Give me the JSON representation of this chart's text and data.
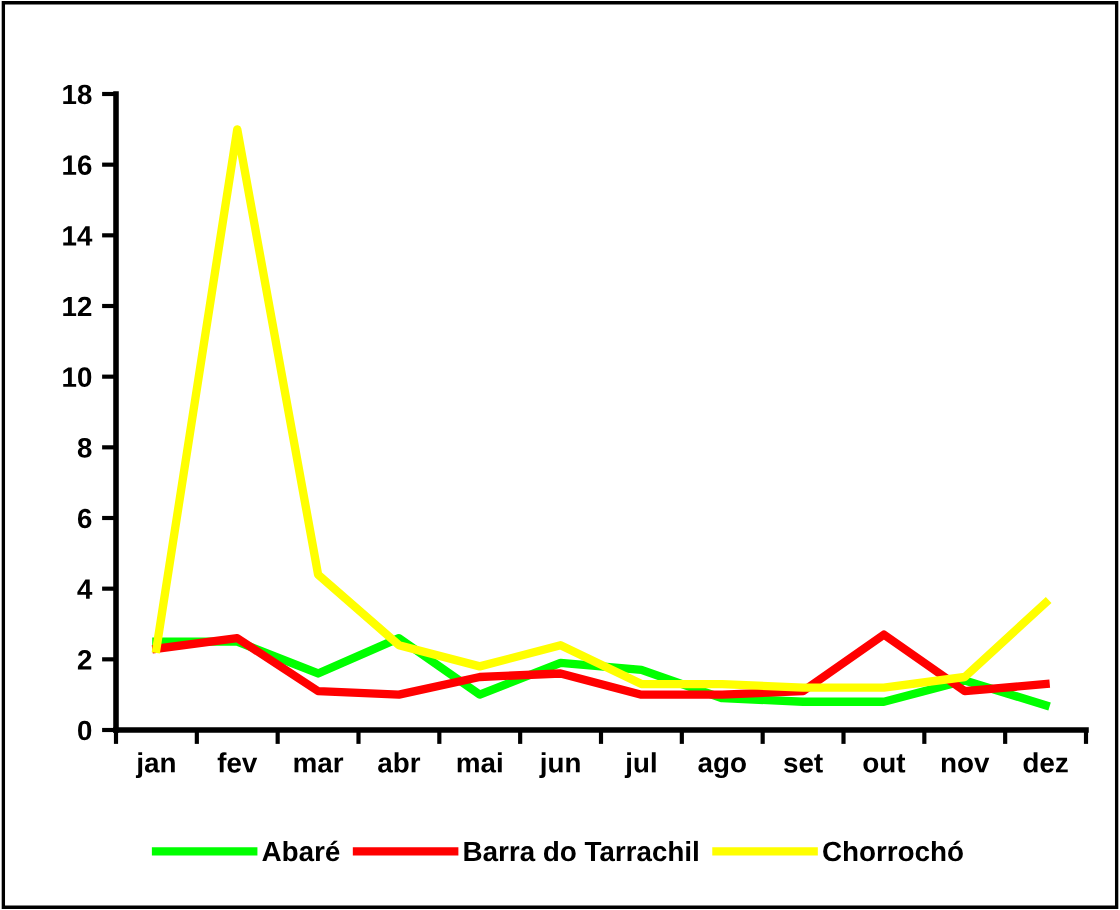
{
  "chart_data": {
    "type": "line",
    "categories": [
      "jan",
      "fev",
      "mar",
      "abr",
      "mai",
      "jun",
      "jul",
      "ago",
      "set",
      "out",
      "nov",
      "dez"
    ],
    "series": [
      {
        "name": "Abaré",
        "color": "#00ff00",
        "values": [
          2.5,
          2.5,
          1.6,
          2.6,
          1.0,
          1.9,
          1.7,
          0.9,
          0.8,
          0.8,
          1.4,
          0.7
        ]
      },
      {
        "name": "Barra do Tarrachil",
        "color": "#ff0000",
        "values": [
          2.3,
          2.6,
          1.1,
          1.0,
          1.5,
          1.6,
          1.0,
          1.0,
          1.1,
          2.7,
          1.1,
          1.3
        ]
      },
      {
        "name": "Chorrochó",
        "color": "#ffff00",
        "values": [
          2.3,
          17.0,
          4.4,
          2.4,
          1.8,
          2.4,
          1.3,
          1.3,
          1.2,
          1.2,
          1.5,
          3.6
        ]
      }
    ],
    "ylim": [
      0,
      18
    ],
    "yticks": [
      0,
      2,
      4,
      6,
      8,
      10,
      12,
      14,
      16,
      18
    ],
    "grid": false,
    "legend": "bottom",
    "marker": "none",
    "line_style": "solid"
  }
}
